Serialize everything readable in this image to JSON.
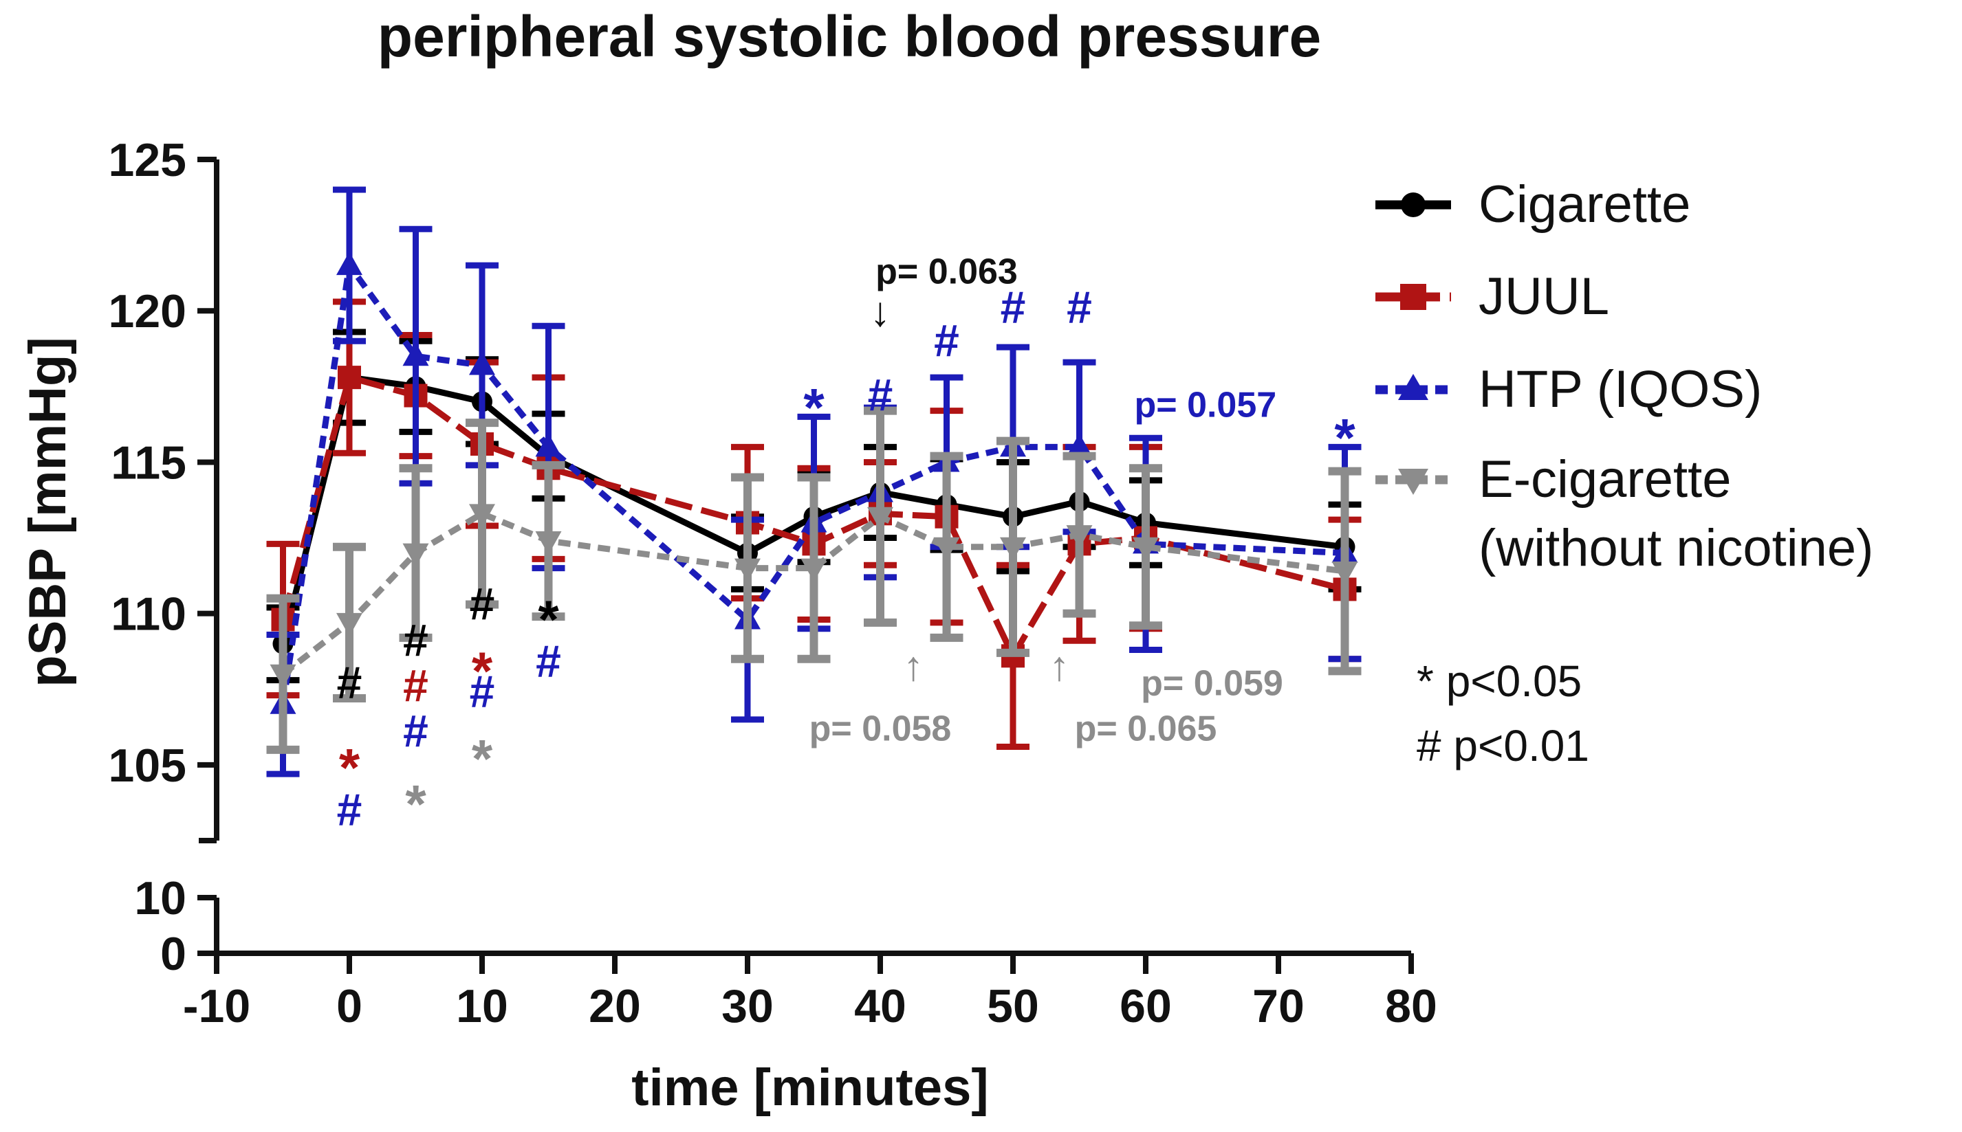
{
  "chart_data": {
    "type": "line",
    "title": "peripheral systolic blood pressure",
    "xlabel": "time [minutes]",
    "ylabel": "pSBP [mmHg]",
    "xlim": [
      -10,
      80
    ],
    "x_ticks": [
      -10,
      0,
      10,
      20,
      30,
      40,
      50,
      60,
      70,
      80
    ],
    "x_tick_labels": [
      "-10",
      "0",
      "10",
      "20",
      "30",
      "40",
      "50",
      "60",
      "70",
      "80"
    ],
    "y_upper": {
      "range": [
        102.5,
        125
      ],
      "ticks": [
        105,
        110,
        115,
        120,
        125
      ],
      "tick_labels": [
        "105",
        "110",
        "115",
        "120",
        "125"
      ]
    },
    "y_lower": {
      "range": [
        0,
        10
      ],
      "ticks": [
        0,
        10
      ],
      "tick_labels": [
        "0",
        "10"
      ]
    },
    "series": [
      {
        "name": "Cigarette",
        "color": "#000000",
        "marker": "circle",
        "dash": "solid",
        "x": [
          -5,
          0,
          5,
          10,
          15,
          30,
          35,
          40,
          45,
          50,
          55,
          60,
          75
        ],
        "y": [
          109.0,
          117.8,
          117.5,
          117.0,
          115.2,
          112.0,
          113.2,
          114.0,
          113.6,
          113.2,
          113.7,
          113.0,
          112.2
        ],
        "err": [
          1.2,
          1.5,
          1.5,
          1.4,
          1.4,
          1.2,
          1.5,
          1.5,
          1.5,
          1.8,
          1.5,
          1.4,
          1.4
        ]
      },
      {
        "name": "JUUL",
        "color": "#b01414",
        "marker": "square",
        "dash": "longdash",
        "x": [
          -5,
          0,
          5,
          10,
          15,
          30,
          35,
          40,
          45,
          50,
          55,
          60,
          75
        ],
        "y": [
          109.8,
          117.8,
          117.2,
          115.6,
          114.8,
          113.0,
          112.3,
          113.3,
          113.2,
          108.6,
          112.3,
          112.5,
          110.8
        ],
        "err": [
          2.5,
          2.5,
          2.0,
          2.7,
          3.0,
          2.5,
          2.5,
          1.7,
          3.5,
          3.0,
          3.2,
          3.0,
          2.3
        ]
      },
      {
        "name": "HTP (IQOS)",
        "color": "#1c1cb8",
        "marker": "triangle-up",
        "dash": "shortdash",
        "x": [
          -5,
          0,
          5,
          10,
          15,
          30,
          35,
          40,
          45,
          50,
          55,
          60,
          75
        ],
        "y": [
          107.0,
          121.5,
          118.5,
          118.2,
          115.5,
          109.8,
          113.0,
          114.0,
          115.0,
          115.5,
          115.5,
          112.3,
          112.0
        ],
        "err": [
          2.3,
          2.5,
          4.2,
          3.3,
          4.0,
          3.3,
          3.5,
          2.8,
          2.8,
          3.3,
          2.8,
          3.5,
          3.5
        ]
      },
      {
        "name": "E-cigarette",
        "name_line2": "(without nicotine)",
        "color": "#8c8c8c",
        "marker": "triangle-down",
        "dash": "shortdash",
        "x": [
          -5,
          0,
          5,
          10,
          15,
          30,
          35,
          40,
          45,
          50,
          55,
          60,
          75
        ],
        "y": [
          108.0,
          109.7,
          112.0,
          113.3,
          112.4,
          111.5,
          111.5,
          113.2,
          112.2,
          112.2,
          112.6,
          112.2,
          111.4
        ],
        "err": [
          2.5,
          2.5,
          2.8,
          3.0,
          2.5,
          3.0,
          3.0,
          3.5,
          3.0,
          3.5,
          2.6,
          2.6,
          3.3
        ]
      }
    ],
    "annotations": [
      {
        "text": "#",
        "x": 0,
        "y": 107.2,
        "color": "#000000"
      },
      {
        "text": "*",
        "x": 0,
        "y": 104.3,
        "color": "#b01414"
      },
      {
        "text": "#",
        "x": 0,
        "y": 103.0,
        "color": "#1c1cb8"
      },
      {
        "text": "#",
        "x": 5,
        "y": 108.6,
        "color": "#000000"
      },
      {
        "text": "#",
        "x": 5,
        "y": 107.1,
        "color": "#b01414"
      },
      {
        "text": "#",
        "x": 5,
        "y": 105.6,
        "color": "#1c1cb8"
      },
      {
        "text": "*",
        "x": 5,
        "y": 103.1,
        "color": "#8c8c8c"
      },
      {
        "text": "#",
        "x": 10,
        "y": 109.8,
        "color": "#000000"
      },
      {
        "text": "*",
        "x": 10,
        "y": 107.5,
        "color": "#b01414"
      },
      {
        "text": "#",
        "x": 10,
        "y": 106.9,
        "color": "#1c1cb8"
      },
      {
        "text": "*",
        "x": 10,
        "y": 104.6,
        "color": "#8c8c8c"
      },
      {
        "text": "*",
        "x": 15,
        "y": 109.2,
        "color": "#000000"
      },
      {
        "text": "#",
        "x": 15,
        "y": 107.9,
        "color": "#1c1cb8"
      },
      {
        "text": "*",
        "x": 35,
        "y": 116.2,
        "color": "#1c1cb8"
      },
      {
        "text": "#",
        "x": 40,
        "y": 116.7,
        "color": "#1c1cb8"
      },
      {
        "text": "#",
        "x": 45,
        "y": 118.5,
        "color": "#1c1cb8"
      },
      {
        "text": "#",
        "x": 50,
        "y": 119.6,
        "color": "#1c1cb8"
      },
      {
        "text": "#",
        "x": 55,
        "y": 119.6,
        "color": "#1c1cb8"
      },
      {
        "text": "*",
        "x": 75,
        "y": 115.2,
        "color": "#1c1cb8"
      },
      {
        "text": "p= 0.063",
        "x": 45,
        "y": 120.9,
        "color": "#111111"
      },
      {
        "text": "↓",
        "x": 40,
        "y": 119.5,
        "color": "#111111"
      },
      {
        "text": "p= 0.057",
        "x": 64.5,
        "y": 116.5,
        "color": "#1c1cb8"
      },
      {
        "text": "↑",
        "x": 42.5,
        "y": 107.8,
        "color": "#8c8c8c"
      },
      {
        "text": "p= 0.058",
        "x": 40,
        "y": 105.8,
        "color": "#8c8c8c"
      },
      {
        "text": "↑",
        "x": 53.5,
        "y": 107.8,
        "color": "#8c8c8c"
      },
      {
        "text": "p= 0.065",
        "x": 60,
        "y": 105.8,
        "color": "#8c8c8c"
      },
      {
        "text": "p= 0.059",
        "x": 65,
        "y": 107.3,
        "color": "#8c8c8c"
      }
    ],
    "significance_key": [
      "* p<0.05",
      "# p<0.01"
    ],
    "legend_position": "right"
  }
}
